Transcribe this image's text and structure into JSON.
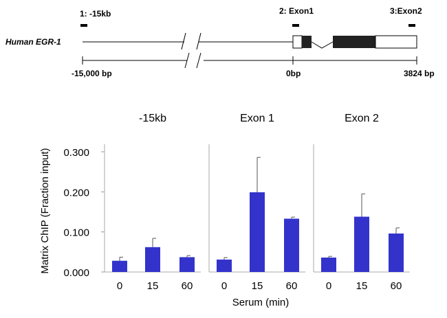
{
  "gene_map": {
    "gene_label": "Human EGR-1",
    "probes": [
      {
        "label": "1: -15kb"
      },
      {
        "label": "2: Exon1"
      },
      {
        "label": "3:Exon2"
      }
    ],
    "scale": [
      {
        "label": "-15,000  bp"
      },
      {
        "label": "0bp"
      },
      {
        "label": "3824 bp"
      }
    ]
  },
  "chart_data": {
    "type": "bar",
    "ylabel": "Matrix ChIP (Fraction input)",
    "xlabel": "Serum (min)",
    "ylim": [
      0,
      0.3
    ],
    "yticks": [
      0,
      0.1,
      0.2,
      0.3
    ],
    "ytick_labels": [
      "0.000",
      "0.100",
      "0.200",
      "0.300"
    ],
    "categories": [
      "0",
      "15",
      "60"
    ],
    "bar_color": "#3333cc",
    "error_bars": true,
    "panels": [
      {
        "title": "-15kb",
        "values": [
          0.028,
          0.062,
          0.037
        ],
        "errors": [
          0.009,
          0.022,
          0.004
        ]
      },
      {
        "title": "Exon 1",
        "values": [
          0.031,
          0.199,
          0.133
        ],
        "errors": [
          0.005,
          0.087,
          0.004
        ]
      },
      {
        "title": "Exon 2",
        "values": [
          0.036,
          0.138,
          0.096
        ],
        "errors": [
          0.003,
          0.057,
          0.014
        ]
      }
    ]
  }
}
